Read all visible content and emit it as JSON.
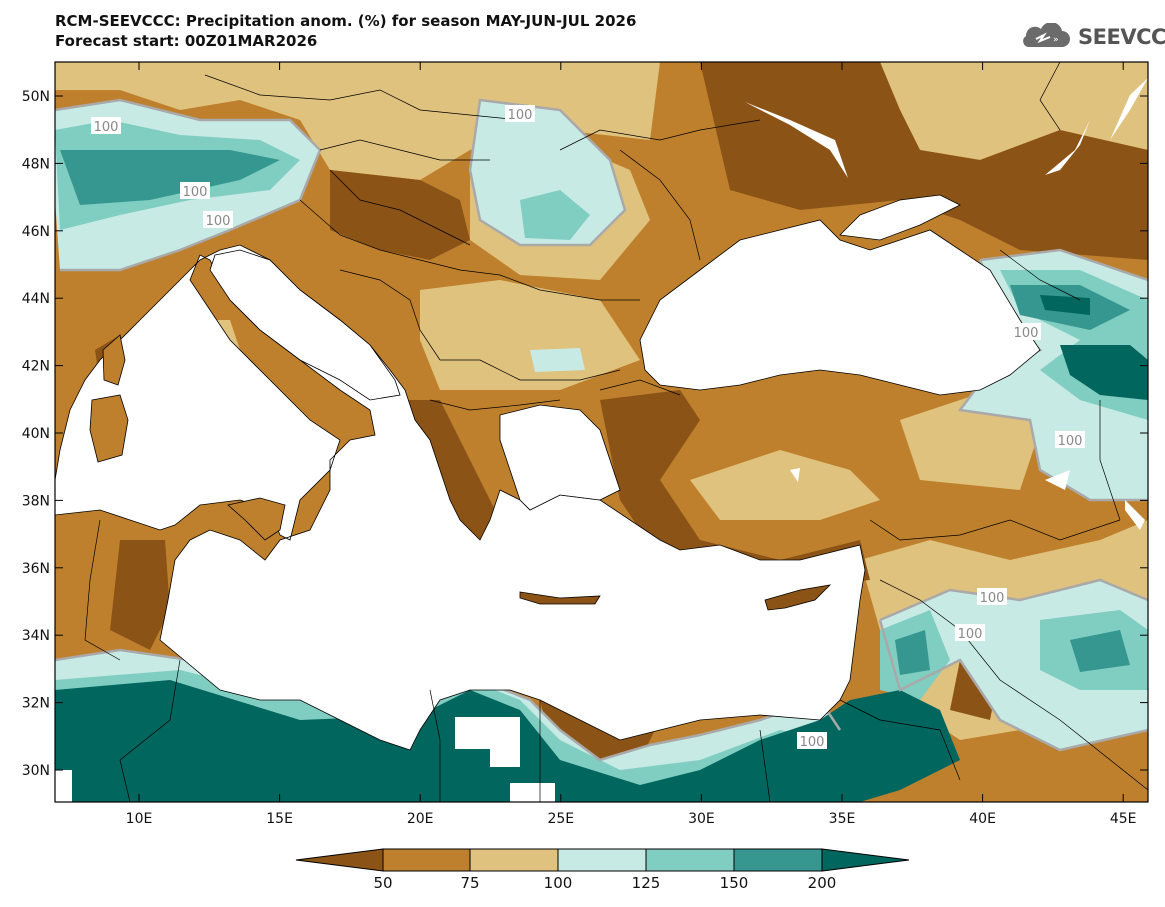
{
  "header": {
    "title": "RCM-SEEVCCC: Precipitation anom. (%) for season MAY-JUN-JUL 2026",
    "subtitle": "Forecast start: 00Z01MAR2026",
    "logo_text": "SEEVCCC"
  },
  "axes": {
    "y_labels": [
      "50N",
      "48N",
      "46N",
      "44N",
      "42N",
      "40N",
      "38N",
      "36N",
      "34N",
      "32N",
      "30N"
    ],
    "x_labels": [
      "10E",
      "15E",
      "20E",
      "25E",
      "30E",
      "35E",
      "40E",
      "45E"
    ]
  },
  "contour_label": "100",
  "colorbar": {
    "labels": [
      "50",
      "75",
      "100",
      "125",
      "150",
      "200"
    ],
    "colors": [
      "#8c5316",
      "#bf802d",
      "#dfc27d",
      "#c7eae5",
      "#80cdc1",
      "#35978f",
      "#01665e"
    ]
  },
  "colors": {
    "land_default": "#bf802d",
    "sea": "#ffffff"
  }
}
